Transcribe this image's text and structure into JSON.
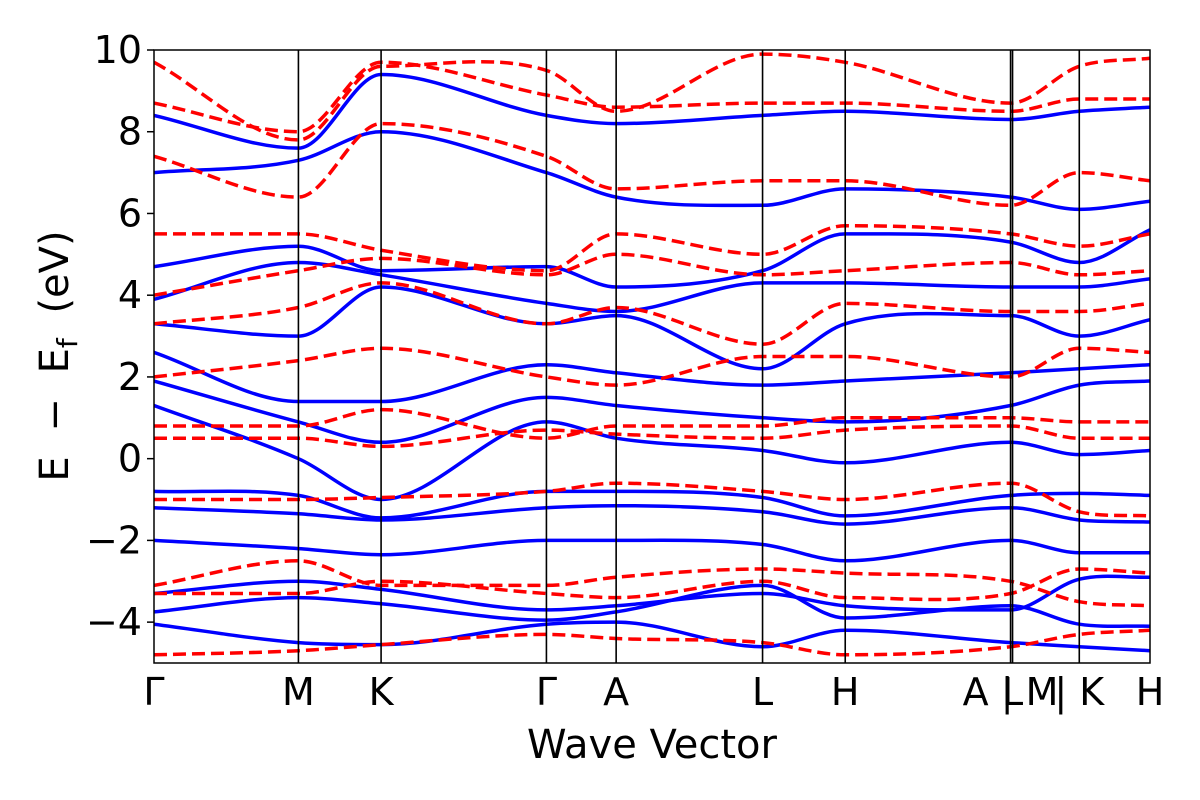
{
  "chart_data": {
    "type": "line",
    "xlabel": "Wave Vector",
    "ylabel_parts": {
      "E": "E",
      "minus": "−",
      "Ef_base": "E",
      "Ef_sub": "f",
      "unit": "(eV)"
    },
    "ylim": [
      -5,
      10
    ],
    "yticks": [
      10,
      8,
      6,
      4,
      2,
      0,
      -2,
      -4
    ],
    "ytick_labels": [
      "10",
      "8",
      "6",
      "4",
      "2",
      "0",
      "−2",
      "−4"
    ],
    "x_range": [
      0,
      1
    ],
    "kpoints": [
      {
        "label": "Γ",
        "x": 0.0
      },
      {
        "label": "M",
        "x": 0.145
      },
      {
        "label": "K",
        "x": 0.228
      },
      {
        "label": "Γ",
        "x": 0.394
      },
      {
        "label": "A",
        "x": 0.464
      },
      {
        "label": "L",
        "x": 0.611
      },
      {
        "label": "H",
        "x": 0.694
      },
      {
        "label": "A | M",
        "x": 0.86
      },
      {
        "label": "L",
        "x": 0.862
      },
      {
        "label": "| K",
        "x": 0.929
      },
      {
        "label": "H",
        "x": 1.0
      }
    ],
    "series_styles": [
      {
        "color": "#0000ff",
        "dash": "solid"
      },
      {
        "color": "#ff0000",
        "dash": "dashed"
      }
    ],
    "series": [
      {
        "style": 0,
        "bands": [
          {
            "x": [
              0,
              0.145,
              0.228,
              0.394,
              0.464,
              0.611,
              0.694,
              0.86,
              0.929,
              1
            ],
            "y": [
              -4.05,
              -4.5,
              -4.55,
              -4.05,
              -4.0,
              -4.6,
              -4.2,
              -4.5,
              -4.6,
              -4.7
            ]
          },
          {
            "x": [
              0,
              0.145,
              0.228,
              0.394,
              0.464,
              0.611,
              0.694,
              0.86,
              0.929,
              1
            ],
            "y": [
              -3.75,
              -3.4,
              -3.55,
              -3.95,
              -3.75,
              -3.1,
              -3.9,
              -3.6,
              -4.05,
              -4.1
            ]
          },
          {
            "x": [
              0,
              0.145,
              0.228,
              0.394,
              0.464,
              0.611,
              0.694,
              0.86,
              0.929,
              1
            ],
            "y": [
              -3.3,
              -3.0,
              -3.2,
              -3.7,
              -3.6,
              -3.3,
              -3.6,
              -3.7,
              -2.95,
              -2.9
            ]
          },
          {
            "x": [
              0,
              0.145,
              0.228,
              0.394,
              0.464,
              0.611,
              0.694,
              0.86,
              0.929,
              1
            ],
            "y": [
              -2.0,
              -2.2,
              -2.35,
              -2.0,
              -2.0,
              -2.1,
              -2.5,
              -2.0,
              -2.3,
              -2.3
            ]
          },
          {
            "x": [
              0,
              0.145,
              0.228,
              0.394,
              0.464,
              0.611,
              0.694,
              0.86,
              0.929,
              1
            ],
            "y": [
              -1.2,
              -1.35,
              -1.5,
              -1.2,
              -1.15,
              -1.3,
              -1.6,
              -1.2,
              -1.5,
              -1.55
            ]
          },
          {
            "x": [
              0,
              0.145,
              0.228,
              0.394,
              0.464,
              0.611,
              0.694,
              0.86,
              0.929,
              1
            ],
            "y": [
              -0.8,
              -0.9,
              -1.45,
              -0.8,
              -0.8,
              -0.95,
              -1.4,
              -0.9,
              -0.85,
              -0.9
            ]
          },
          {
            "x": [
              0,
              0.145,
              0.228,
              0.394,
              0.464,
              0.611,
              0.694,
              0.86,
              0.929,
              1
            ],
            "y": [
              1.3,
              0.0,
              -1.0,
              0.9,
              0.5,
              0.2,
              -0.1,
              0.4,
              0.1,
              0.2
            ]
          },
          {
            "x": [
              0,
              0.145,
              0.228,
              0.394,
              0.464,
              0.611,
              0.694,
              0.86,
              0.929,
              1
            ],
            "y": [
              1.9,
              0.9,
              0.4,
              1.5,
              1.3,
              1.0,
              0.9,
              1.3,
              1.8,
              1.9
            ]
          },
          {
            "x": [
              0,
              0.145,
              0.228,
              0.394,
              0.464,
              0.611,
              0.694,
              0.86,
              0.929,
              1
            ],
            "y": [
              2.6,
              1.4,
              1.4,
              2.3,
              2.1,
              1.8,
              1.9,
              2.1,
              2.2,
              2.3
            ]
          },
          {
            "x": [
              0,
              0.145,
              0.228,
              0.394,
              0.464,
              0.611,
              0.694,
              0.86,
              0.929,
              1
            ],
            "y": [
              3.3,
              3.0,
              4.2,
              3.3,
              3.5,
              2.2,
              3.3,
              3.5,
              3.0,
              3.4
            ]
          },
          {
            "x": [
              0,
              0.145,
              0.228,
              0.394,
              0.464,
              0.611,
              0.694,
              0.86,
              0.929,
              1
            ],
            "y": [
              3.9,
              4.8,
              4.5,
              3.8,
              3.6,
              4.3,
              4.3,
              4.2,
              4.2,
              4.4
            ]
          },
          {
            "x": [
              0,
              0.145,
              0.228,
              0.394,
              0.464,
              0.611,
              0.694,
              0.86,
              0.929,
              1
            ],
            "y": [
              4.7,
              5.2,
              4.6,
              4.7,
              4.2,
              4.6,
              5.5,
              5.3,
              4.8,
              5.6
            ]
          },
          {
            "x": [
              0,
              0.145,
              0.228,
              0.394,
              0.464,
              0.611,
              0.694,
              0.86,
              0.929,
              1
            ],
            "y": [
              7.0,
              7.3,
              8.0,
              7.0,
              6.4,
              6.2,
              6.6,
              6.4,
              6.1,
              6.3
            ]
          },
          {
            "x": [
              0,
              0.145,
              0.228,
              0.394,
              0.464,
              0.611,
              0.694,
              0.86,
              0.929,
              1
            ],
            "y": [
              8.4,
              7.6,
              9.4,
              8.4,
              8.2,
              8.4,
              8.5,
              8.3,
              8.5,
              8.6
            ]
          }
        ]
      },
      {
        "style": 1,
        "bands": [
          {
            "x": [
              0,
              0.145,
              0.228,
              0.394,
              0.464,
              0.611,
              0.694,
              0.86,
              0.929,
              1
            ],
            "y": [
              -4.8,
              -4.7,
              -4.55,
              -4.3,
              -4.4,
              -4.5,
              -4.8,
              -4.6,
              -4.3,
              -4.2
            ]
          },
          {
            "x": [
              0,
              0.145,
              0.228,
              0.394,
              0.464,
              0.611,
              0.694,
              0.86,
              0.929,
              1
            ],
            "y": [
              -3.1,
              -2.5,
              -3.1,
              -3.1,
              -2.9,
              -2.7,
              -2.8,
              -3.0,
              -3.5,
              -3.6
            ]
          },
          {
            "x": [
              0,
              0.145,
              0.228,
              0.394,
              0.464,
              0.611,
              0.694,
              0.86,
              0.929,
              1
            ],
            "y": [
              -3.3,
              -3.3,
              -3.0,
              -3.3,
              -3.4,
              -3.0,
              -3.4,
              -3.3,
              -2.7,
              -2.8
            ]
          },
          {
            "x": [
              0,
              0.145,
              0.228,
              0.394,
              0.464,
              0.611,
              0.694,
              0.86,
              0.929,
              1
            ],
            "y": [
              -1.0,
              -1.0,
              -0.95,
              -0.8,
              -0.6,
              -0.8,
              -1.0,
              -0.6,
              -1.3,
              -1.4
            ]
          },
          {
            "x": [
              0,
              0.145,
              0.228,
              0.394,
              0.464,
              0.611,
              0.694,
              0.86,
              0.929,
              1
            ],
            "y": [
              0.5,
              0.5,
              0.3,
              0.7,
              0.6,
              0.5,
              0.7,
              0.8,
              0.5,
              0.5
            ]
          },
          {
            "x": [
              0,
              0.145,
              0.228,
              0.394,
              0.464,
              0.611,
              0.694,
              0.86,
              0.929,
              1
            ],
            "y": [
              0.8,
              0.8,
              1.2,
              0.5,
              0.8,
              0.8,
              1.0,
              1.0,
              0.9,
              0.9
            ]
          },
          {
            "x": [
              0,
              0.145,
              0.228,
              0.394,
              0.464,
              0.611,
              0.694,
              0.86,
              0.929,
              1
            ],
            "y": [
              2.0,
              2.4,
              2.7,
              2.0,
              1.8,
              2.5,
              2.5,
              2.0,
              2.7,
              2.6
            ]
          },
          {
            "x": [
              0,
              0.145,
              0.228,
              0.394,
              0.464,
              0.611,
              0.694,
              0.86,
              0.929,
              1
            ],
            "y": [
              3.3,
              3.7,
              4.3,
              3.3,
              3.7,
              2.8,
              3.8,
              3.6,
              3.6,
              3.8
            ]
          },
          {
            "x": [
              0,
              0.145,
              0.228,
              0.394,
              0.464,
              0.611,
              0.694,
              0.86,
              0.929,
              1
            ],
            "y": [
              4.0,
              4.6,
              4.9,
              4.5,
              5.0,
              4.5,
              4.6,
              4.8,
              4.5,
              4.6
            ]
          },
          {
            "x": [
              0,
              0.145,
              0.228,
              0.394,
              0.464,
              0.611,
              0.694,
              0.86,
              0.929,
              1
            ],
            "y": [
              5.5,
              5.5,
              5.1,
              4.6,
              5.5,
              5.0,
              5.7,
              5.5,
              5.2,
              5.5
            ]
          },
          {
            "x": [
              0,
              0.145,
              0.228,
              0.394,
              0.464,
              0.611,
              0.694,
              0.86,
              0.929,
              1
            ],
            "y": [
              7.4,
              6.4,
              8.2,
              7.4,
              6.6,
              6.8,
              6.8,
              6.2,
              7.0,
              6.8
            ]
          },
          {
            "x": [
              0,
              0.145,
              0.228,
              0.394,
              0.464,
              0.611,
              0.694,
              0.86,
              0.929,
              1
            ],
            "y": [
              8.7,
              8.0,
              9.7,
              8.9,
              8.6,
              8.7,
              8.7,
              8.5,
              8.8,
              8.8
            ]
          },
          {
            "x": [
              0,
              0.145,
              0.228,
              0.394,
              0.464,
              0.611,
              0.694,
              0.86,
              0.929,
              1
            ],
            "y": [
              9.7,
              7.8,
              9.6,
              9.5,
              8.5,
              9.9,
              9.7,
              8.7,
              9.6,
              9.8
            ]
          }
        ]
      }
    ]
  }
}
